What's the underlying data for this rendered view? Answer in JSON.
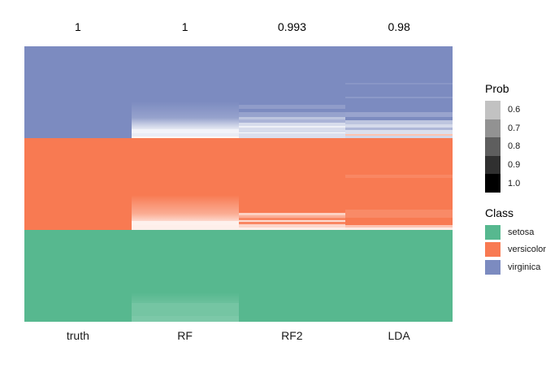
{
  "chart_data": {
    "type": "heatmap",
    "x_labels": [
      "truth",
      "RF",
      "RF2",
      "LDA"
    ],
    "accuracy_labels": [
      "1",
      "1",
      "0.993",
      "0.98"
    ],
    "row_groups_top_to_bottom": [
      "virginica",
      "versicolor",
      "setosa"
    ],
    "class_colors": {
      "setosa": "#57b88f",
      "versicolor": "#f87a52",
      "virginica": "#7c8bc0"
    },
    "prob_legend": {
      "title": "Prob",
      "ticks": [
        "0.6",
        "0.7",
        "0.8",
        "0.9",
        "1.0"
      ],
      "swatch_colors": [
        "#c2c2c2",
        "#929292",
        "#5e5e5e",
        "#303030",
        "#000000"
      ]
    },
    "class_legend": {
      "title": "Class",
      "items": [
        {
          "label": "setosa",
          "color": "#57b88f"
        },
        {
          "label": "versicolor",
          "color": "#f87a52"
        },
        {
          "label": "virginica",
          "color": "#7c8bc0"
        }
      ]
    },
    "columns": [
      {
        "label": "truth",
        "accuracy": "1",
        "blocks": [
          [
            {
              "h": 1.0,
              "a": [
                1,
                1
              ]
            }
          ],
          [
            {
              "h": 1.0,
              "a": [
                1,
                1
              ]
            }
          ],
          [
            {
              "h": 1.0,
              "a": [
                1,
                1
              ]
            }
          ]
        ]
      },
      {
        "label": "RF",
        "accuracy": "1",
        "blocks": [
          [
            {
              "h": 0.6,
              "a": [
                1,
                1
              ]
            },
            {
              "h": 0.18,
              "a": [
                1,
                0.8
              ]
            },
            {
              "h": 0.08,
              "a": [
                0.8,
                0.4
              ]
            },
            {
              "h": 0.04,
              "a": [
                0.4,
                0.2
              ]
            },
            {
              "h": 0.05,
              "a": [
                0.1,
                0.1
              ]
            },
            {
              "h": 0.03,
              "a": [
                0.16,
                0.16
              ]
            },
            {
              "h": 0.02,
              "a": [
                0.08,
                0.08
              ],
              "c": "versicolor"
            }
          ],
          [
            {
              "h": 0.62,
              "a": [
                1,
                1
              ]
            },
            {
              "h": 0.2,
              "a": [
                1,
                0.62
              ]
            },
            {
              "h": 0.08,
              "a": [
                0.62,
                0.3
              ]
            },
            {
              "h": 0.05,
              "a": [
                0.1,
                0.1
              ]
            },
            {
              "h": 0.05,
              "a": [
                0.12,
                0.12
              ]
            }
          ],
          [
            {
              "h": 0.68,
              "a": [
                1,
                1
              ]
            },
            {
              "h": 0.12,
              "a": [
                1,
                0.88
              ]
            },
            {
              "h": 0.14,
              "a": [
                0.82,
                0.82
              ]
            },
            {
              "h": 0.06,
              "a": [
                0.78,
                0.78
              ]
            }
          ]
        ]
      },
      {
        "label": "RF2",
        "accuracy": "0.993",
        "blocks": [
          [
            {
              "h": 0.64,
              "a": [
                1,
                1
              ]
            },
            {
              "h": 0.045,
              "a": [
                0.85,
                0.85
              ]
            },
            {
              "h": 0.035,
              "a": [
                1,
                1
              ]
            },
            {
              "h": 0.05,
              "a": [
                0.8,
                0.8
              ]
            },
            {
              "h": 0.03,
              "a": [
                0.5,
                0.5
              ]
            },
            {
              "h": 0.03,
              "a": [
                0.65,
                0.65
              ]
            },
            {
              "h": 0.035,
              "a": [
                0.3,
                0.3
              ]
            },
            {
              "h": 0.02,
              "a": [
                0.12,
                0.12
              ]
            },
            {
              "h": 0.05,
              "a": [
                0.3,
                0.3
              ]
            },
            {
              "h": 0.015,
              "a": [
                0.05,
                0.05
              ]
            },
            {
              "h": 0.05,
              "a": [
                0.28,
                0.28
              ]
            }
          ],
          [
            {
              "h": 0.81,
              "a": [
                1,
                1
              ]
            },
            {
              "h": 0.03,
              "a": [
                0.35,
                0.35
              ]
            },
            {
              "h": 0.025,
              "a": [
                0.6,
                0.6
              ]
            },
            {
              "h": 0.03,
              "a": [
                0.9,
                0.9
              ]
            },
            {
              "h": 0.02,
              "a": [
                0.25,
                0.25
              ]
            },
            {
              "h": 0.025,
              "a": [
                0.9,
                0.9
              ]
            },
            {
              "h": 0.03,
              "a": [
                0.3,
                0.3
              ]
            },
            {
              "h": 0.03,
              "a": [
                0.12,
                0.12
              ]
            }
          ],
          [
            {
              "h": 1.0,
              "a": [
                1,
                1
              ]
            }
          ]
        ]
      },
      {
        "label": "LDA",
        "accuracy": "0.98",
        "blocks": [
          [
            {
              "h": 0.4,
              "a": [
                1,
                1
              ]
            },
            {
              "h": 0.02,
              "a": [
                0.9,
                0.9
              ]
            },
            {
              "h": 0.13,
              "a": [
                1,
                1
              ]
            },
            {
              "h": 0.02,
              "a": [
                0.88,
                0.88
              ]
            },
            {
              "h": 0.15,
              "a": [
                1,
                1
              ]
            },
            {
              "h": 0.05,
              "a": [
                0.78,
                0.78
              ]
            },
            {
              "h": 0.04,
              "a": [
                1,
                1
              ]
            },
            {
              "h": 0.04,
              "a": [
                0.5,
                0.5
              ]
            },
            {
              "h": 0.035,
              "a": [
                0.32,
                0.32
              ]
            },
            {
              "h": 0.03,
              "a": [
                0.62,
                0.62
              ]
            },
            {
              "h": 0.04,
              "a": [
                0.28,
                0.28
              ]
            },
            {
              "h": 0.02,
              "a": [
                0.45,
                0.45
              ],
              "c": "versicolor"
            },
            {
              "h": 0.025,
              "a": [
                0.35,
                0.35
              ]
            }
          ],
          [
            {
              "h": 0.4,
              "a": [
                1,
                1
              ]
            },
            {
              "h": 0.03,
              "a": [
                0.9,
                0.9
              ]
            },
            {
              "h": 0.35,
              "a": [
                1,
                1
              ]
            },
            {
              "h": 0.09,
              "a": [
                0.88,
                0.88
              ]
            },
            {
              "h": 0.08,
              "a": [
                1,
                1
              ]
            },
            {
              "h": 0.025,
              "a": [
                0.45,
                0.45
              ]
            },
            {
              "h": 0.025,
              "a": [
                0.15,
                0.15
              ]
            }
          ],
          [
            {
              "h": 1.0,
              "a": [
                1,
                1
              ]
            }
          ]
        ]
      }
    ]
  }
}
